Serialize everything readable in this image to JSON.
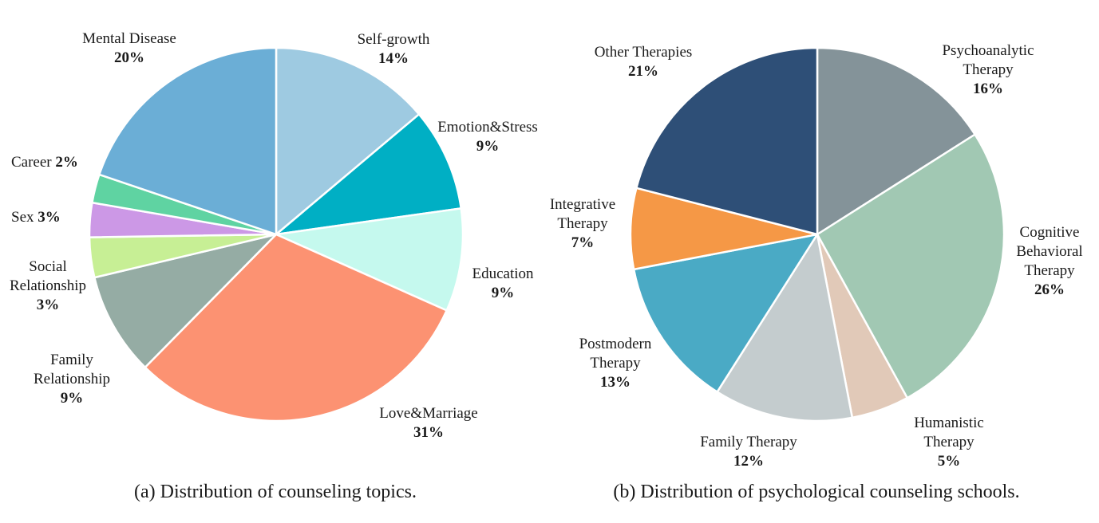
{
  "chart_data": [
    {
      "type": "pie",
      "caption": "(a) Distribution of counseling topics.",
      "slices": [
        {
          "name": "Self-growth",
          "percent_label": "14%",
          "value": 14,
          "color": "#9ecae1"
        },
        {
          "name": "Emotion&Stress",
          "percent_label": "9%",
          "value": 9,
          "color": "#00afc4"
        },
        {
          "name": "Education",
          "percent_label": "9%",
          "value": 9,
          "color": "#c5f9ee"
        },
        {
          "name": "Love&Marriage",
          "percent_label": "31%",
          "value": 31,
          "color": "#fc9272"
        },
        {
          "name": "Family Relationship",
          "percent_label": "9%",
          "value": 9,
          "color": "#95aca4"
        },
        {
          "name": "Social Relationship",
          "percent_label": "3%",
          "value": 3.5,
          "color": "#c7ef95"
        },
        {
          "name": "Sex",
          "percent_label": "3%",
          "value": 3,
          "color": "#cc98e6"
        },
        {
          "name": "Career",
          "percent_label": "2%",
          "value": 2.5,
          "color": "#5fd3a2"
        },
        {
          "name": "Mental Disease",
          "percent_label": "20%",
          "value": 20,
          "color": "#6baed6"
        }
      ]
    },
    {
      "type": "pie",
      "caption": "(b) Distribution of psychological counseling schools.",
      "slices": [
        {
          "name": "Psychoanalytic Therapy",
          "percent_label": "16%",
          "value": 16,
          "color": "#849399"
        },
        {
          "name": "Cognitive Behavioral Therapy",
          "percent_label": "26%",
          "value": 26,
          "color": "#a1c8b3"
        },
        {
          "name": "Humanistic Therapy",
          "percent_label": "5%",
          "value": 5,
          "color": "#e1c9b8"
        },
        {
          "name": "Family Therapy",
          "percent_label": "12%",
          "value": 12,
          "color": "#c4ccce"
        },
        {
          "name": "Postmodern Therapy",
          "percent_label": "13%",
          "value": 13,
          "color": "#4aaac5"
        },
        {
          "name": "Integrative Therapy",
          "percent_label": "7%",
          "value": 7,
          "color": "#f59846"
        },
        {
          "name": "Other Therapies",
          "percent_label": "21%",
          "value": 21,
          "color": "#2e4f77"
        }
      ]
    }
  ]
}
